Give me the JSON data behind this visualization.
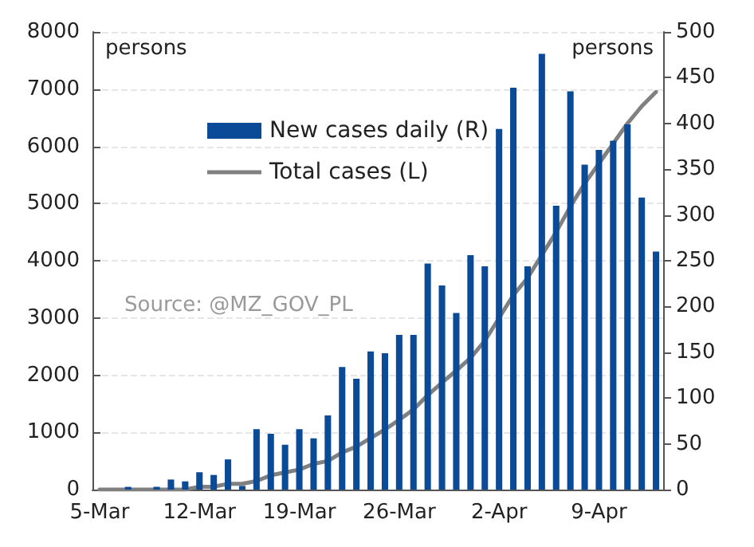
{
  "chart_data": {
    "type": "bar",
    "categories": [
      "5-Mar",
      null,
      null,
      null,
      null,
      null,
      null,
      "12-Mar",
      null,
      null,
      null,
      null,
      null,
      null,
      "19-Mar",
      null,
      null,
      null,
      null,
      null,
      null,
      "26-Mar",
      null,
      null,
      null,
      null,
      null,
      null,
      "2-Apr",
      null,
      null,
      null,
      null,
      null,
      null,
      "9-Apr",
      null,
      null,
      null,
      null
    ],
    "series": [
      {
        "name": "New cases daily (R)",
        "axis": "y2",
        "color": "#0b4a96",
        "values": [
          0,
          0,
          3,
          0,
          3,
          11,
          9,
          19,
          16,
          33,
          4,
          66,
          61,
          49,
          66,
          56,
          81,
          134,
          121,
          151,
          149,
          169,
          169,
          247,
          223,
          193,
          256,
          244,
          394,
          439,
          244,
          476,
          310,
          435,
          355,
          371,
          381,
          399,
          319,
          260
        ]
      },
      {
        "name": "Total cases (L)",
        "type": "line",
        "color": "#808080",
        "values": [
          0,
          0,
          0,
          0,
          0,
          0,
          0,
          50,
          50,
          100,
          100,
          150,
          250,
          300,
          350,
          450,
          500,
          650,
          750,
          900,
          1050,
          1220,
          1400,
          1650,
          1870,
          2080,
          2300,
          2600,
          3000,
          3400,
          3700,
          4100,
          4500,
          4950,
          5350,
          5700,
          6050,
          6400,
          6700,
          6950
        ]
      }
    ],
    "ylabel": "persons",
    "y2label": "persons",
    "ylim": [
      0,
      8000
    ],
    "yticks": [
      0,
      1000,
      2000,
      3000,
      4000,
      5000,
      6000,
      7000,
      8000
    ],
    "y2lim": [
      0,
      500
    ],
    "y2ticks": [
      0,
      50,
      100,
      150,
      200,
      250,
      300,
      350,
      400,
      450,
      500
    ],
    "annotations": [
      "Source: @MZ_GOV_PL"
    ],
    "grid": "y",
    "legend": "top left",
    "marker": "none",
    "line_style": "solid"
  }
}
